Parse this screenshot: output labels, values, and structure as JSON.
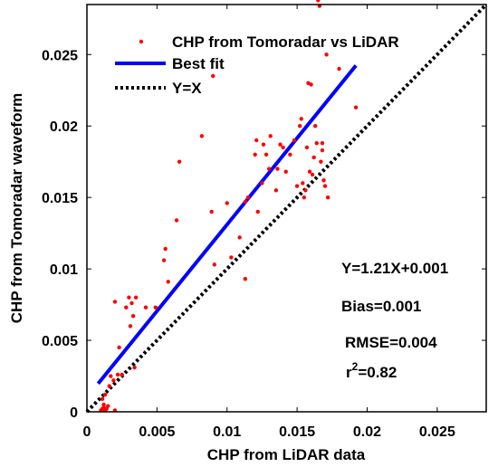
{
  "chart_data": {
    "type": "scatter",
    "xlabel": "CHP from LiDAR data",
    "ylabel": "CHP from Tomoradar waveform",
    "xlim": [
      0,
      0.0285
    ],
    "ylim": [
      0,
      0.0285
    ],
    "xticks": [
      0,
      0.005,
      0.01,
      0.015,
      0.02,
      0.025
    ],
    "yticks": [
      0,
      0.005,
      0.01,
      0.015,
      0.02,
      0.025
    ],
    "xtick_labels": [
      "0",
      "0.005",
      "0.01",
      "0.015",
      "0.02",
      "0.025"
    ],
    "ytick_labels": [
      "0",
      "0.005",
      "0.01",
      "0.015",
      "0.02",
      "0.025"
    ],
    "grid": false,
    "legend_position": "top-left",
    "series": [
      {
        "name": "CHP from Tomoradar vs LiDAR",
        "kind": "scatter",
        "color": "#ff0000",
        "points": [
          [
            0.001,
            0.0001
          ],
          [
            0.0011,
            0.0002
          ],
          [
            0.0012,
            0.0003
          ],
          [
            0.0013,
            0.0001
          ],
          [
            0.0014,
            0.0002
          ],
          [
            0.0012,
            0.0005
          ],
          [
            0.0015,
            0.0004
          ],
          [
            0.0011,
            0.0009
          ],
          [
            0.0013,
            0.0012
          ],
          [
            0.0016,
            0.0018
          ],
          [
            0.002,
            0.0001
          ],
          [
            0.0017,
            0.0025
          ],
          [
            0.0019,
            0.0022
          ],
          [
            0.0022,
            0.0026
          ],
          [
            0.0023,
            0.0045
          ],
          [
            0.002,
            0.0077
          ],
          [
            0.0025,
            0.0026
          ],
          [
            0.0028,
            0.0073
          ],
          [
            0.003,
            0.008
          ],
          [
            0.0031,
            0.006
          ],
          [
            0.0033,
            0.0067
          ],
          [
            0.0032,
            0.0076
          ],
          [
            0.0035,
            0.008
          ],
          [
            0.0034,
            0.0031
          ],
          [
            0.0042,
            0.0073
          ],
          [
            0.0049,
            0.0073
          ],
          [
            0.0055,
            0.0106
          ],
          [
            0.0056,
            0.0114
          ],
          [
            0.0058,
            0.0091
          ],
          [
            0.0064,
            0.0134
          ],
          [
            0.0066,
            0.0175
          ],
          [
            0.0082,
            0.0193
          ],
          [
            0.0089,
            0.014
          ],
          [
            0.0091,
            0.0103
          ],
          [
            0.009,
            0.0235
          ],
          [
            0.01,
            0.0146
          ],
          [
            0.0103,
            0.0108
          ],
          [
            0.0109,
            0.0122
          ],
          [
            0.0113,
            0.0147
          ],
          [
            0.0115,
            0.015
          ],
          [
            0.0113,
            0.0093
          ],
          [
            0.012,
            0.018
          ],
          [
            0.0121,
            0.019
          ],
          [
            0.0122,
            0.014
          ],
          [
            0.0125,
            0.016
          ],
          [
            0.0126,
            0.0187
          ],
          [
            0.0128,
            0.018
          ],
          [
            0.013,
            0.017
          ],
          [
            0.0131,
            0.0193
          ],
          [
            0.0135,
            0.0155
          ],
          [
            0.0136,
            0.017
          ],
          [
            0.0138,
            0.0187
          ],
          [
            0.014,
            0.0185
          ],
          [
            0.0142,
            0.0168
          ],
          [
            0.0145,
            0.018
          ],
          [
            0.0148,
            0.019
          ],
          [
            0.015,
            0.0158
          ],
          [
            0.0152,
            0.02
          ],
          [
            0.0153,
            0.0205
          ],
          [
            0.0154,
            0.016
          ],
          [
            0.0155,
            0.015
          ],
          [
            0.0156,
            0.0155
          ],
          [
            0.0157,
            0.0185
          ],
          [
            0.0158,
            0.023
          ],
          [
            0.0159,
            0.0168
          ],
          [
            0.016,
            0.0229
          ],
          [
            0.0161,
            0.0166
          ],
          [
            0.0162,
            0.0178
          ],
          [
            0.0163,
            0.02
          ],
          [
            0.0164,
            0.0188
          ],
          [
            0.0165,
            0.0288
          ],
          [
            0.0166,
            0.0284
          ],
          [
            0.0167,
            0.0175
          ],
          [
            0.0168,
            0.0188
          ],
          [
            0.0169,
            0.0162
          ],
          [
            0.017,
            0.0158
          ],
          [
            0.0171,
            0.025
          ],
          [
            0.0172,
            0.015
          ],
          [
            0.018,
            0.024
          ],
          [
            0.0192,
            0.0213
          ],
          [
            0.0168,
            0.0183
          ]
        ]
      },
      {
        "name": "Best fit",
        "kind": "line",
        "color": "#0000ff",
        "slope": 1.21,
        "intercept": 0.001,
        "x_range": [
          0.0008,
          0.0192
        ]
      },
      {
        "name": "Y=X",
        "kind": "dotted-line",
        "color": "#000000",
        "slope": 1,
        "intercept": 0,
        "x_range": [
          0,
          0.0285
        ]
      }
    ],
    "annotations": [
      "Y=1.21X+0.001",
      "Bias=0.001",
      "RMSE=0.004",
      "r",
      "2",
      "=0.82"
    ]
  }
}
